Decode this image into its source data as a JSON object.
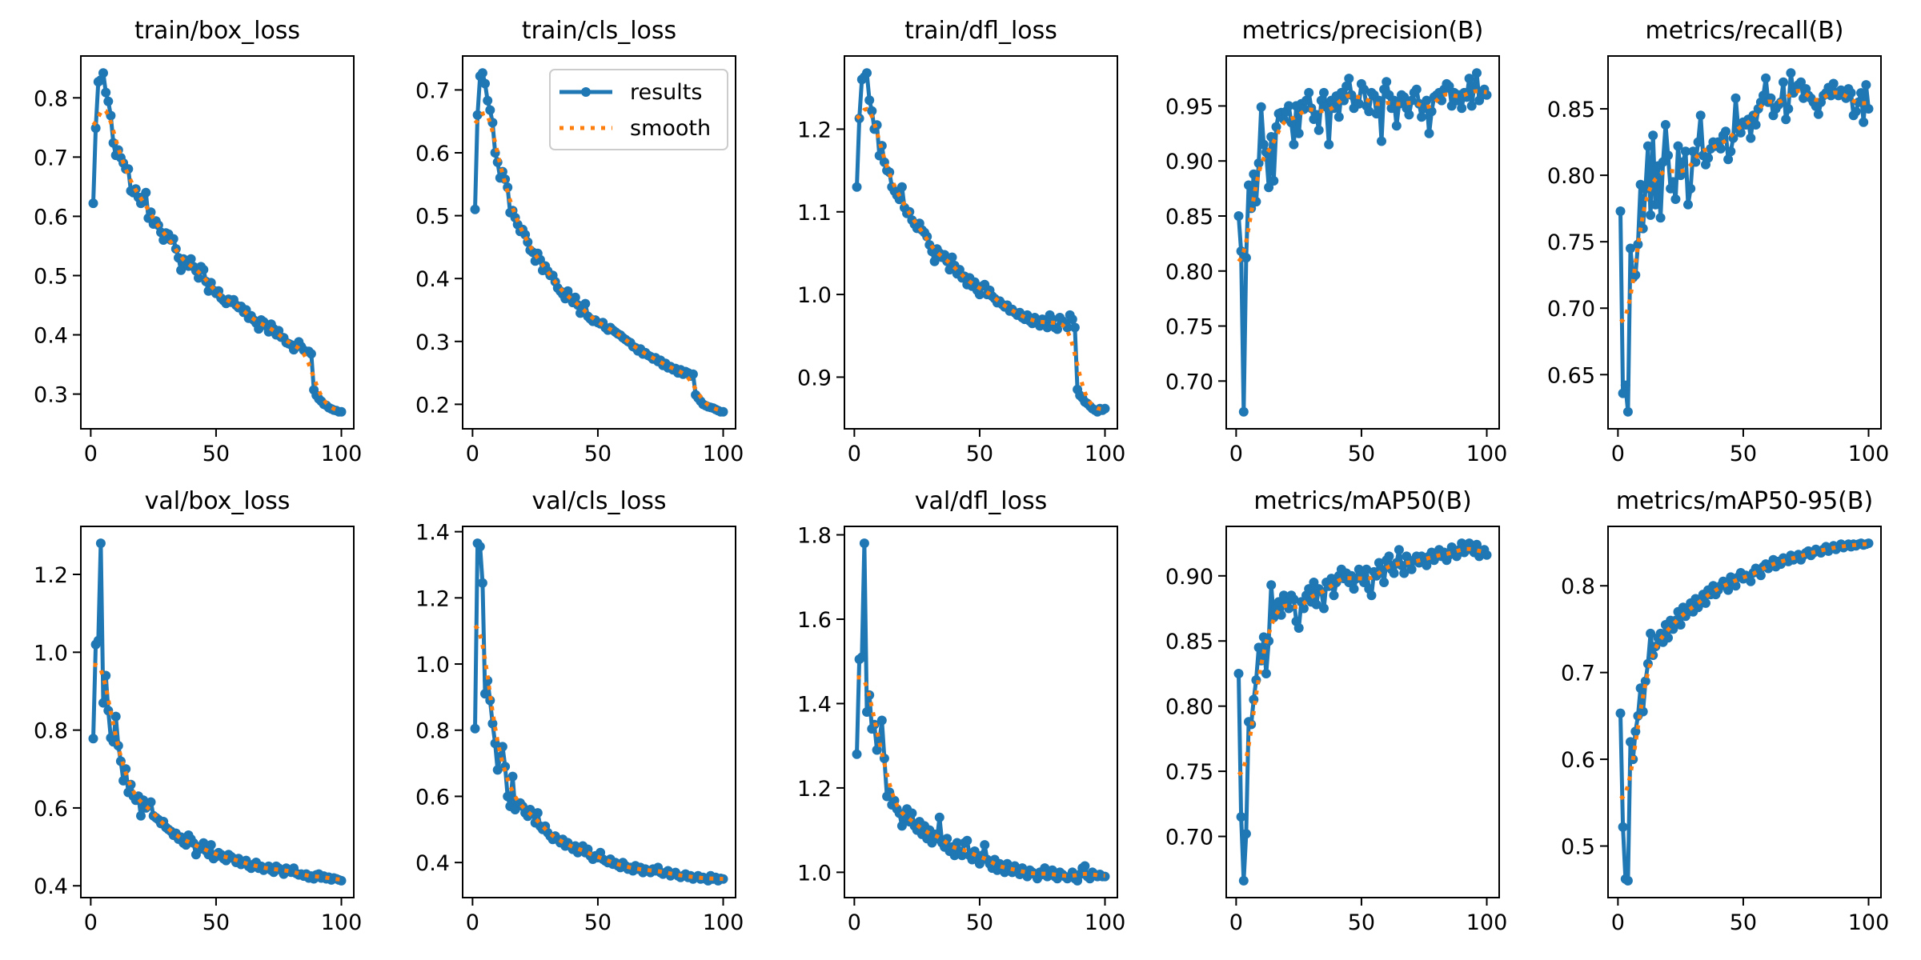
{
  "legend": {
    "results_label": "results",
    "smooth_label": "smooth"
  },
  "colors": {
    "results": "#1f77b4",
    "smooth": "#ff7f0e"
  },
  "chart_data": [
    {
      "type": "line",
      "title": "train/box_loss",
      "xlabel": "",
      "ylabel": "",
      "xlim": [
        0,
        100
      ],
      "xticks": [
        "0",
        "50",
        "100"
      ],
      "yticks": [
        "0.3",
        "0.4",
        "0.5",
        "0.6",
        "0.7",
        "0.8"
      ],
      "grid": false,
      "legend": null,
      "values": [
        0.622,
        0.749,
        0.827,
        0.83,
        0.842,
        0.809,
        0.794,
        0.77,
        0.724,
        0.703,
        0.712,
        0.699,
        0.69,
        0.68,
        0.68,
        0.643,
        0.64,
        0.646,
        0.632,
        0.622,
        0.633,
        0.64,
        0.597,
        0.607,
        0.587,
        0.592,
        0.585,
        0.573,
        0.56,
        0.572,
        0.57,
        0.56,
        0.562,
        0.545,
        0.53,
        0.509,
        0.528,
        0.52,
        0.516,
        0.528,
        0.515,
        0.508,
        0.496,
        0.515,
        0.51,
        0.49,
        0.474,
        0.488,
        0.475,
        0.47,
        0.474,
        0.462,
        0.458,
        0.453,
        0.46,
        0.455,
        0.459,
        0.45,
        0.446,
        0.448,
        0.438,
        0.442,
        0.428,
        0.432,
        0.425,
        0.42,
        0.41,
        0.425,
        0.422,
        0.415,
        0.405,
        0.418,
        0.41,
        0.4,
        0.407,
        0.396,
        0.395,
        0.387,
        0.385,
        0.383,
        0.375,
        0.38,
        0.388,
        0.38,
        0.374,
        0.372,
        0.372,
        0.368,
        0.307,
        0.298,
        0.292,
        0.288,
        0.283,
        0.281,
        0.277,
        0.275,
        0.273,
        0.272,
        0.27,
        0.27
      ]
    },
    {
      "type": "line",
      "title": "train/cls_loss",
      "xlabel": "",
      "ylabel": "",
      "xlim": [
        0,
        100
      ],
      "xticks": [
        "0",
        "50",
        "100"
      ],
      "yticks": [
        "0.2",
        "0.3",
        "0.4",
        "0.5",
        "0.6",
        "0.7"
      ],
      "grid": false,
      "legend": "upper right",
      "values": [
        0.51,
        0.66,
        0.722,
        0.727,
        0.71,
        0.683,
        0.668,
        0.648,
        0.6,
        0.585,
        0.56,
        0.57,
        0.558,
        0.545,
        0.505,
        0.508,
        0.497,
        0.486,
        0.475,
        0.478,
        0.47,
        0.458,
        0.445,
        0.442,
        0.428,
        0.44,
        0.43,
        0.413,
        0.42,
        0.412,
        0.405,
        0.405,
        0.395,
        0.385,
        0.38,
        0.375,
        0.368,
        0.38,
        0.37,
        0.362,
        0.37,
        0.358,
        0.345,
        0.355,
        0.36,
        0.34,
        0.336,
        0.332,
        0.334,
        0.33,
        0.328,
        0.33,
        0.322,
        0.318,
        0.322,
        0.318,
        0.315,
        0.312,
        0.31,
        0.306,
        0.303,
        0.3,
        0.298,
        0.292,
        0.29,
        0.285,
        0.288,
        0.28,
        0.282,
        0.278,
        0.276,
        0.272,
        0.274,
        0.268,
        0.27,
        0.262,
        0.265,
        0.258,
        0.26,
        0.255,
        0.257,
        0.25,
        0.255,
        0.248,
        0.252,
        0.25,
        0.245,
        0.248,
        0.215,
        0.21,
        0.205,
        0.2,
        0.198,
        0.196,
        0.195,
        0.194,
        0.192,
        0.19,
        0.188,
        0.188
      ]
    },
    {
      "type": "line",
      "title": "train/dfl_loss",
      "xlabel": "",
      "ylabel": "",
      "xlim": [
        0,
        100
      ],
      "xticks": [
        "0",
        "50",
        "100"
      ],
      "yticks": [
        "0.9",
        "1.0",
        "1.1",
        "1.2"
      ],
      "grid": false,
      "legend": null,
      "values": [
        1.13,
        1.213,
        1.26,
        1.263,
        1.268,
        1.235,
        1.222,
        1.2,
        1.205,
        1.168,
        1.18,
        1.16,
        1.15,
        1.148,
        1.13,
        1.125,
        1.12,
        1.115,
        1.13,
        1.105,
        1.098,
        1.1,
        1.09,
        1.085,
        1.08,
        1.086,
        1.078,
        1.075,
        1.07,
        1.06,
        1.052,
        1.04,
        1.055,
        1.05,
        1.045,
        1.048,
        1.04,
        1.03,
        1.045,
        1.035,
        1.025,
        1.03,
        1.02,
        1.022,
        1.012,
        1.02,
        1.01,
        1.015,
        1.005,
        1.0,
        1.01,
        1.012,
        1.0,
        1.005,
        0.998,
        0.995,
        0.99,
        0.992,
        0.988,
        0.985,
        0.987,
        0.98,
        0.982,
        0.978,
        0.975,
        0.978,
        0.972,
        0.97,
        0.975,
        0.968,
        0.965,
        0.972,
        0.966,
        0.962,
        0.97,
        0.965,
        0.96,
        0.975,
        0.97,
        0.96,
        0.958,
        0.972,
        0.968,
        0.965,
        0.96,
        0.975,
        0.97,
        0.96,
        0.885,
        0.878,
        0.875,
        0.87,
        0.868,
        0.865,
        0.862,
        0.86,
        0.858,
        0.862,
        0.86,
        0.862
      ]
    },
    {
      "type": "line",
      "title": "metrics/precision(B)",
      "xlabel": "",
      "ylabel": "",
      "xlim": [
        0,
        100
      ],
      "xticks": [
        "0",
        "50",
        "100"
      ],
      "yticks": [
        "0.70",
        "0.75",
        "0.80",
        "0.85",
        "0.90",
        "0.95"
      ],
      "grid": false,
      "legend": null,
      "values": [
        0.85,
        0.818,
        0.672,
        0.812,
        0.878,
        0.857,
        0.888,
        0.863,
        0.898,
        0.949,
        0.915,
        0.908,
        0.876,
        0.922,
        0.882,
        0.931,
        0.943,
        0.944,
        0.938,
        0.945,
        0.95,
        0.935,
        0.915,
        0.95,
        0.925,
        0.952,
        0.947,
        0.955,
        0.962,
        0.948,
        0.938,
        0.942,
        0.928,
        0.955,
        0.962,
        0.949,
        0.915,
        0.955,
        0.948,
        0.959,
        0.94,
        0.962,
        0.955,
        0.968,
        0.975,
        0.96,
        0.948,
        0.955,
        0.952,
        0.97,
        0.965,
        0.95,
        0.945,
        0.962,
        0.96,
        0.943,
        0.955,
        0.918,
        0.965,
        0.972,
        0.96,
        0.948,
        0.955,
        0.932,
        0.952,
        0.96,
        0.958,
        0.948,
        0.942,
        0.955,
        0.962,
        0.965,
        0.952,
        0.94,
        0.948,
        0.955,
        0.925,
        0.945,
        0.958,
        0.96,
        0.962,
        0.955,
        0.965,
        0.97,
        0.968,
        0.95,
        0.962,
        0.955,
        0.96,
        0.948,
        0.962,
        0.958,
        0.975,
        0.95,
        0.968,
        0.98,
        0.955,
        0.96,
        0.965,
        0.96
      ]
    },
    {
      "type": "line",
      "title": "metrics/recall(B)",
      "xlabel": "",
      "ylabel": "",
      "xlim": [
        0,
        100
      ],
      "xticks": [
        "0",
        "50",
        "100"
      ],
      "yticks": [
        "0.65",
        "0.70",
        "0.75",
        "0.80",
        "0.85"
      ],
      "grid": false,
      "legend": null,
      "values": [
        0.773,
        0.636,
        0.642,
        0.622,
        0.745,
        0.723,
        0.725,
        0.748,
        0.793,
        0.76,
        0.79,
        0.822,
        0.77,
        0.83,
        0.778,
        0.807,
        0.768,
        0.81,
        0.838,
        0.815,
        0.79,
        0.795,
        0.782,
        0.822,
        0.8,
        0.81,
        0.818,
        0.778,
        0.79,
        0.818,
        0.81,
        0.825,
        0.845,
        0.815,
        0.808,
        0.813,
        0.82,
        0.825,
        0.822,
        0.825,
        0.82,
        0.83,
        0.833,
        0.812,
        0.818,
        0.828,
        0.858,
        0.835,
        0.832,
        0.84,
        0.838,
        0.842,
        0.828,
        0.845,
        0.838,
        0.85,
        0.855,
        0.86,
        0.873,
        0.855,
        0.858,
        0.845,
        0.85,
        0.853,
        0.855,
        0.87,
        0.842,
        0.85,
        0.877,
        0.862,
        0.866,
        0.868,
        0.87,
        0.858,
        0.865,
        0.86,
        0.858,
        0.855,
        0.852,
        0.846,
        0.855,
        0.86,
        0.862,
        0.866,
        0.86,
        0.869,
        0.862,
        0.86,
        0.864,
        0.862,
        0.858,
        0.865,
        0.862,
        0.845,
        0.848,
        0.855,
        0.862,
        0.84,
        0.868,
        0.85
      ]
    },
    {
      "type": "line",
      "title": "val/box_loss",
      "xlabel": "",
      "ylabel": "",
      "xlim": [
        0,
        100
      ],
      "xticks": [
        "0",
        "50",
        "100"
      ],
      "yticks": [
        "0.4",
        "0.6",
        "0.8",
        "1.0",
        "1.2"
      ],
      "grid": false,
      "legend": null,
      "values": [
        0.778,
        1.02,
        1.03,
        1.28,
        0.87,
        0.94,
        0.85,
        0.78,
        0.77,
        0.835,
        0.76,
        0.72,
        0.67,
        0.7,
        0.64,
        0.66,
        0.63,
        0.62,
        0.63,
        0.58,
        0.62,
        0.6,
        0.61,
        0.615,
        0.58,
        0.575,
        0.57,
        0.56,
        0.565,
        0.55,
        0.545,
        0.54,
        0.53,
        0.535,
        0.52,
        0.525,
        0.51,
        0.505,
        0.53,
        0.52,
        0.51,
        0.48,
        0.5,
        0.495,
        0.51,
        0.49,
        0.48,
        0.505,
        0.47,
        0.475,
        0.485,
        0.48,
        0.47,
        0.465,
        0.48,
        0.475,
        0.47,
        0.46,
        0.47,
        0.455,
        0.46,
        0.465,
        0.45,
        0.445,
        0.455,
        0.46,
        0.445,
        0.45,
        0.44,
        0.445,
        0.45,
        0.44,
        0.435,
        0.45,
        0.445,
        0.44,
        0.43,
        0.445,
        0.44,
        0.435,
        0.445,
        0.432,
        0.428,
        0.43,
        0.425,
        0.43,
        0.42,
        0.425,
        0.418,
        0.428,
        0.43,
        0.42,
        0.425,
        0.418,
        0.422,
        0.415,
        0.42,
        0.418,
        0.415,
        0.413
      ]
    },
    {
      "type": "line",
      "title": "val/cls_loss",
      "xlabel": "",
      "ylabel": "",
      "xlim": [
        0,
        100
      ],
      "xticks": [
        "0",
        "50",
        "100"
      ],
      "yticks": [
        "0.4",
        "0.6",
        "0.8",
        "1.0",
        "1.2",
        "1.4"
      ],
      "grid": false,
      "legend": null,
      "values": [
        0.805,
        1.365,
        1.355,
        1.245,
        0.91,
        0.95,
        0.89,
        0.82,
        0.76,
        0.68,
        0.72,
        0.75,
        0.69,
        0.6,
        0.57,
        0.66,
        0.56,
        0.58,
        0.58,
        0.57,
        0.55,
        0.54,
        0.56,
        0.55,
        0.52,
        0.55,
        0.51,
        0.5,
        0.51,
        0.49,
        0.48,
        0.47,
        0.48,
        0.47,
        0.46,
        0.47,
        0.45,
        0.46,
        0.45,
        0.44,
        0.45,
        0.43,
        0.44,
        0.45,
        0.43,
        0.44,
        0.42,
        0.41,
        0.42,
        0.415,
        0.43,
        0.41,
        0.405,
        0.4,
        0.41,
        0.395,
        0.4,
        0.39,
        0.385,
        0.4,
        0.39,
        0.38,
        0.385,
        0.375,
        0.39,
        0.38,
        0.385,
        0.37,
        0.38,
        0.375,
        0.37,
        0.38,
        0.375,
        0.385,
        0.37,
        0.365,
        0.37,
        0.375,
        0.36,
        0.365,
        0.37,
        0.36,
        0.355,
        0.36,
        0.365,
        0.355,
        0.36,
        0.35,
        0.355,
        0.36,
        0.35,
        0.355,
        0.35,
        0.345,
        0.36,
        0.35,
        0.355,
        0.345,
        0.352,
        0.35
      ]
    },
    {
      "type": "line",
      "title": "val/dfl_loss",
      "xlabel": "",
      "ylabel": "",
      "xlim": [
        0,
        100
      ],
      "xticks": [
        "0",
        "50",
        "100"
      ],
      "yticks": [
        "1.0",
        "1.2",
        "1.4",
        "1.6",
        "1.8"
      ],
      "grid": false,
      "legend": null,
      "values": [
        1.28,
        1.505,
        1.51,
        1.78,
        1.38,
        1.42,
        1.34,
        1.35,
        1.29,
        1.31,
        1.36,
        1.27,
        1.18,
        1.19,
        1.16,
        1.17,
        1.15,
        1.14,
        1.11,
        1.13,
        1.15,
        1.12,
        1.14,
        1.11,
        1.1,
        1.12,
        1.09,
        1.11,
        1.08,
        1.1,
        1.07,
        1.09,
        1.08,
        1.13,
        1.07,
        1.06,
        1.08,
        1.05,
        1.06,
        1.04,
        1.07,
        1.05,
        1.04,
        1.07,
        1.075,
        1.04,
        1.03,
        1.05,
        1.03,
        1.02,
        1.04,
        1.065,
        1.03,
        1.02,
        1.01,
        1.03,
        1.005,
        1.02,
        1.01,
        1.0,
        1.02,
        1.01,
        1.0,
        1.015,
        1.005,
        0.995,
        1.01,
        1.0,
        0.99,
        1.005,
        1.0,
        0.995,
        0.985,
        1.0,
        0.995,
        1.01,
        0.99,
        0.995,
        1.005,
        0.99,
        0.985,
        1.0,
        0.995,
        0.99,
        0.985,
        0.99,
        1.0,
        0.985,
        0.98,
        0.995,
        1.01,
        1.015,
        0.99,
        0.985,
        1.0,
        0.995,
        0.99,
        0.995,
        0.99,
        0.99
      ]
    },
    {
      "type": "line",
      "title": "metrics/mAP50(B)",
      "xlabel": "",
      "ylabel": "",
      "xlim": [
        0,
        100
      ],
      "xticks": [
        "0",
        "50",
        "100"
      ],
      "yticks": [
        "0.70",
        "0.75",
        "0.80",
        "0.85",
        "0.90"
      ],
      "grid": false,
      "legend": null,
      "values": [
        0.825,
        0.715,
        0.666,
        0.702,
        0.788,
        0.786,
        0.805,
        0.82,
        0.845,
        0.835,
        0.853,
        0.825,
        0.85,
        0.893,
        0.868,
        0.875,
        0.88,
        0.87,
        0.885,
        0.88,
        0.875,
        0.885,
        0.882,
        0.865,
        0.86,
        0.88,
        0.875,
        0.885,
        0.89,
        0.88,
        0.895,
        0.878,
        0.89,
        0.888,
        0.875,
        0.895,
        0.892,
        0.898,
        0.885,
        0.895,
        0.9,
        0.905,
        0.898,
        0.902,
        0.895,
        0.9,
        0.89,
        0.898,
        0.905,
        0.9,
        0.895,
        0.905,
        0.89,
        0.885,
        0.903,
        0.9,
        0.91,
        0.905,
        0.895,
        0.912,
        0.915,
        0.905,
        0.902,
        0.91,
        0.92,
        0.908,
        0.902,
        0.915,
        0.91,
        0.905,
        0.912,
        0.915,
        0.91,
        0.915,
        0.912,
        0.908,
        0.915,
        0.918,
        0.912,
        0.915,
        0.92,
        0.915,
        0.918,
        0.912,
        0.916,
        0.922,
        0.918,
        0.915,
        0.92,
        0.925,
        0.918,
        0.922,
        0.925,
        0.92,
        0.918,
        0.924,
        0.915,
        0.918,
        0.92,
        0.916
      ]
    },
    {
      "type": "line",
      "title": "metrics/mAP50-95(B)",
      "xlabel": "",
      "ylabel": "",
      "xlim": [
        0,
        100
      ],
      "xticks": [
        "0",
        "50",
        "100"
      ],
      "yticks": [
        "0.5",
        "0.6",
        "0.7",
        "0.8"
      ],
      "grid": false,
      "legend": null,
      "values": [
        0.653,
        0.522,
        0.462,
        0.46,
        0.62,
        0.6,
        0.632,
        0.65,
        0.682,
        0.655,
        0.69,
        0.71,
        0.745,
        0.72,
        0.73,
        0.74,
        0.745,
        0.735,
        0.755,
        0.74,
        0.76,
        0.75,
        0.76,
        0.77,
        0.755,
        0.775,
        0.765,
        0.77,
        0.78,
        0.77,
        0.785,
        0.775,
        0.78,
        0.79,
        0.78,
        0.795,
        0.79,
        0.8,
        0.79,
        0.795,
        0.8,
        0.805,
        0.8,
        0.795,
        0.81,
        0.805,
        0.8,
        0.81,
        0.815,
        0.808,
        0.812,
        0.81,
        0.805,
        0.815,
        0.82,
        0.818,
        0.812,
        0.822,
        0.825,
        0.82,
        0.825,
        0.83,
        0.822,
        0.828,
        0.825,
        0.832,
        0.83,
        0.828,
        0.835,
        0.83,
        0.832,
        0.836,
        0.83,
        0.835,
        0.838,
        0.84,
        0.835,
        0.838,
        0.842,
        0.84,
        0.838,
        0.842,
        0.845,
        0.84,
        0.843,
        0.846,
        0.842,
        0.845,
        0.848,
        0.844,
        0.846,
        0.848,
        0.845,
        0.848,
        0.846,
        0.848,
        0.849,
        0.847,
        0.848,
        0.849
      ]
    }
  ]
}
